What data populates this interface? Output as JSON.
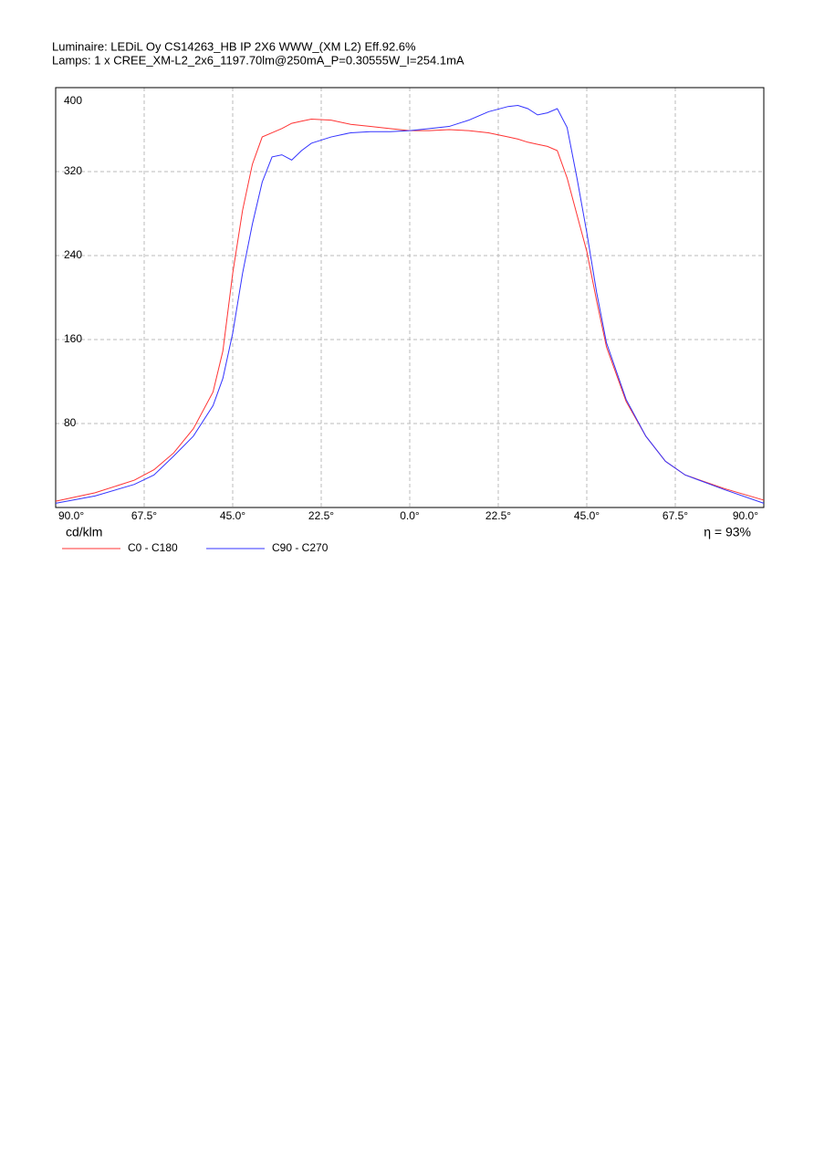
{
  "chart_data": {
    "type": "line",
    "title": "Luminaire: LEDiL Oy CS14263_HB IP 2X6 WWW_(XM L2) Eff.92.6%",
    "subtitle": "Lamps: 1 x CREE_XM-L2_2x6_1197.70lm@250mA_P=0.30555W_I=254.1mA",
    "y_label": "cd/klm",
    "annotation": "η = 93%",
    "x": [
      -90,
      -80,
      -70,
      -65,
      -60,
      -55,
      -50,
      -47.5,
      -45,
      -42.5,
      -40,
      -37.5,
      -35,
      -32.5,
      -30,
      -27.5,
      -25,
      -20,
      -15,
      -10,
      -5,
      0,
      5,
      10,
      15,
      20,
      25,
      27.5,
      30,
      32.5,
      35,
      37.5,
      40,
      42.5,
      45,
      47.5,
      50,
      55,
      60,
      65,
      70,
      80,
      90
    ],
    "series": [
      {
        "name": "C0 - C180",
        "color": "#ff3333",
        "values": [
          6,
          14,
          26,
          36,
          52,
          75,
          110,
          149,
          223,
          283,
          327,
          353,
          357,
          361,
          366,
          368,
          370,
          369,
          365,
          363,
          361,
          359,
          359,
          360,
          359,
          357,
          353,
          351,
          348,
          346,
          344,
          340,
          314,
          279,
          244,
          197,
          153,
          101,
          68,
          44,
          31,
          18,
          7
        ]
      },
      {
        "name": "C90 - C270",
        "color": "#3333ff",
        "values": [
          4,
          11,
          22,
          31,
          49,
          68,
          97,
          123,
          166,
          223,
          270,
          310,
          334,
          336,
          331,
          340,
          347,
          353,
          357,
          358,
          358,
          359,
          361,
          363,
          369,
          377,
          382,
          383,
          380,
          374,
          376,
          380,
          362,
          314,
          262,
          205,
          157,
          103,
          68,
          44,
          31,
          17,
          4
        ]
      }
    ],
    "xlim": [
      -90,
      90
    ],
    "xticks": [
      {
        "value": -90,
        "label": "90.0°"
      },
      {
        "value": -67.5,
        "label": "67.5°"
      },
      {
        "value": -45,
        "label": "45.0°"
      },
      {
        "value": -22.5,
        "label": "22.5°"
      },
      {
        "value": 0,
        "label": "0.0°"
      },
      {
        "value": 22.5,
        "label": "22.5°"
      },
      {
        "value": 45,
        "label": "45.0°"
      },
      {
        "value": 67.5,
        "label": "67.5°"
      },
      {
        "value": 90,
        "label": "90.0°"
      }
    ],
    "ylim": [
      0,
      400
    ],
    "yticks": [
      80,
      160,
      240,
      320,
      400
    ],
    "grid": true
  }
}
